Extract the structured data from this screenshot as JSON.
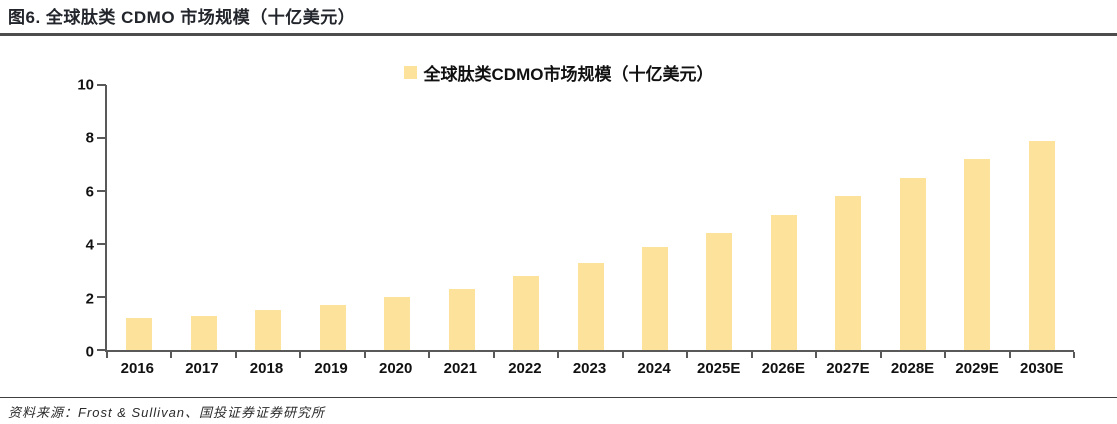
{
  "header": {
    "title": "图6. 全球肽类 CDMO 市场规模（十亿美元）"
  },
  "legend": {
    "label": "全球肽类CDMO市场规模（十亿美元）",
    "swatch_color": "#FCE29B"
  },
  "chart_data": {
    "type": "bar",
    "title": "全球肽类CDMO市场规模（十亿美元）",
    "categories": [
      "2016",
      "2017",
      "2018",
      "2019",
      "2020",
      "2021",
      "2022",
      "2023",
      "2024",
      "2025E",
      "2026E",
      "2027E",
      "2028E",
      "2029E",
      "2030E"
    ],
    "values": [
      1.2,
      1.3,
      1.5,
      1.7,
      2.0,
      2.3,
      2.8,
      3.3,
      3.9,
      4.4,
      5.1,
      5.8,
      6.5,
      7.2,
      7.9
    ],
    "xlabel": "",
    "ylabel": "",
    "ylim": [
      0,
      10
    ],
    "yticks": [
      0,
      2,
      4,
      6,
      8,
      10
    ],
    "grid": false,
    "legend_position": "top-center",
    "bar_color": "#FCE29B",
    "axis_color": "#595959"
  },
  "footer": {
    "source": "资料来源：Frost & Sullivan、国投证券证券研究所"
  }
}
